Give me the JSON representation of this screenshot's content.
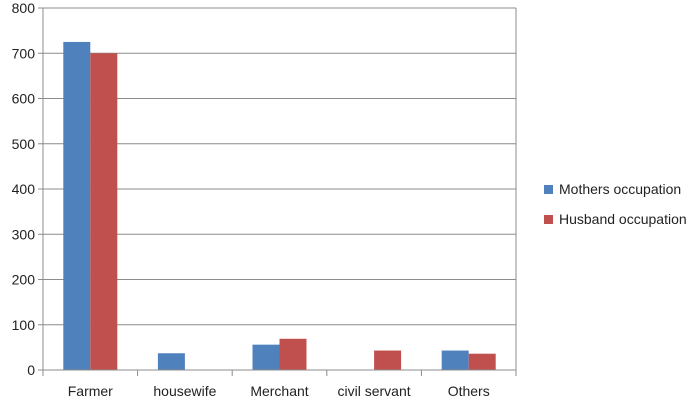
{
  "chart_data": {
    "type": "bar",
    "title": "",
    "xlabel": "",
    "ylabel": "",
    "categories": [
      "Farmer",
      "housewife",
      "Merchant",
      "civil servant",
      "Others"
    ],
    "series": [
      {
        "name": "Mothers occupation",
        "color": "#4f81bd",
        "values": [
          725,
          37,
          56,
          0,
          43
        ]
      },
      {
        "name": "Husband occupation",
        "color": "#c0504d",
        "values": [
          700,
          0,
          69,
          43,
          36
        ]
      }
    ],
    "ylim": [
      0,
      800
    ],
    "yticks": [
      0,
      100,
      200,
      300,
      400,
      500,
      600,
      700,
      800
    ],
    "grid": true,
    "legend_position": "right"
  }
}
